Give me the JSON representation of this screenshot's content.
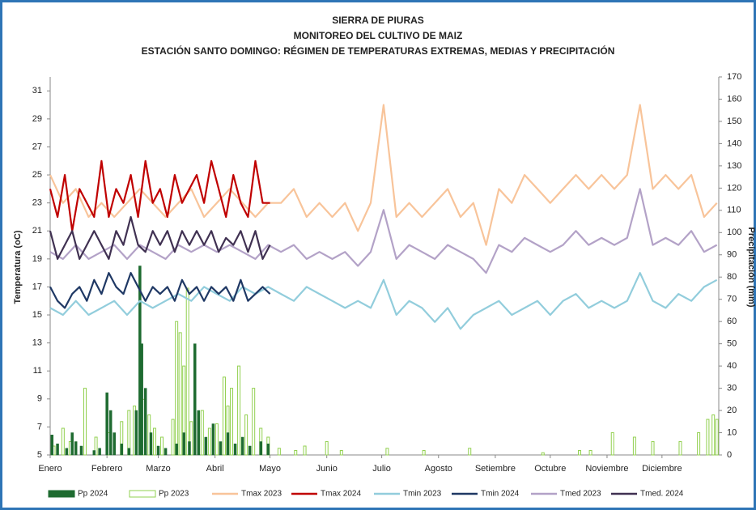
{
  "chart_data": {
    "type": "combo",
    "title_lines": [
      "SIERRA DE PIURAS",
      "MONITOREO DEL CULTIVO DE MAIZ",
      "ESTACIÓN SANTO DOMINGO: RÉGIMEN DE TEMPERATURAS EXTREMAS, MEDIAS Y PRECIPITACIÓN"
    ],
    "y_label": "Temperatura (oC)",
    "y2_label": "Precipitación (mm)",
    "xlim": [
      1,
      366
    ],
    "xticks": [
      {
        "value": 1,
        "label": "Enero"
      },
      {
        "value": 32,
        "label": "Febrero"
      },
      {
        "value": 60,
        "label": "Marzo"
      },
      {
        "value": 91,
        "label": "Abril"
      },
      {
        "value": 121,
        "label": "Mayo"
      },
      {
        "value": 152,
        "label": "Junio"
      },
      {
        "value": 182,
        "label": "Julio"
      },
      {
        "value": 213,
        "label": "Agosto"
      },
      {
        "value": 244,
        "label": "Setiembre"
      },
      {
        "value": 274,
        "label": "Octubre"
      },
      {
        "value": 305,
        "label": "Noviembre"
      },
      {
        "value": 335,
        "label": "Diciembre"
      }
    ],
    "ylim": [
      5,
      32
    ],
    "yticks": [
      5,
      7,
      9,
      11,
      13,
      15,
      17,
      19,
      21,
      23,
      25,
      27,
      29,
      31
    ],
    "y2lim": [
      0,
      170
    ],
    "y2ticks": [
      0,
      10,
      20,
      30,
      40,
      50,
      60,
      70,
      80,
      90,
      100,
      110,
      120,
      130,
      140,
      150,
      160,
      170
    ],
    "series": [
      {
        "name": "Pp 2024",
        "type": "bar",
        "axis": "y2",
        "color": "#1e6b30",
        "x": [
          2,
          5,
          10,
          13,
          15,
          18,
          25,
          28,
          32,
          34,
          36,
          40,
          44,
          48,
          50,
          51,
          53,
          56,
          60,
          64,
          70,
          74,
          77,
          80,
          82,
          86,
          90,
          94,
          98,
          102,
          106,
          110,
          116,
          120
        ],
        "values": [
          9,
          5,
          3,
          10,
          6,
          4,
          2,
          3,
          28,
          20,
          10,
          5,
          3,
          20,
          85,
          50,
          30,
          10,
          4,
          3,
          5,
          10,
          6,
          50,
          20,
          8,
          14,
          6,
          10,
          5,
          8,
          4,
          6,
          5
        ]
      },
      {
        "name": "Pp 2023",
        "type": "bar",
        "axis": "y2",
        "color": "#92d050",
        "x": [
          3,
          8,
          12,
          20,
          26,
          33,
          40,
          44,
          47,
          52,
          55,
          58,
          62,
          68,
          70,
          72,
          74,
          76,
          78,
          84,
          88,
          92,
          96,
          98,
          100,
          104,
          108,
          112,
          116,
          120,
          126,
          135,
          140,
          152,
          160,
          185,
          205,
          230,
          270,
          290,
          296,
          308,
          320,
          330,
          345,
          355,
          360,
          363,
          365
        ],
        "values": [
          4,
          12,
          6,
          30,
          8,
          10,
          15,
          20,
          22,
          25,
          18,
          12,
          8,
          16,
          60,
          55,
          40,
          75,
          15,
          20,
          12,
          14,
          35,
          22,
          30,
          40,
          18,
          30,
          12,
          8,
          3,
          2,
          4,
          6,
          2,
          3,
          2,
          3,
          1,
          2,
          2,
          10,
          8,
          6,
          6,
          10,
          16,
          18,
          16
        ]
      },
      {
        "name": "Tmax 2023",
        "type": "line",
        "color": "#f8c49a",
        "x": [
          1,
          8,
          15,
          22,
          29,
          36,
          43,
          50,
          57,
          64,
          71,
          78,
          85,
          92,
          99,
          106,
          113,
          120,
          127,
          134,
          141,
          148,
          155,
          162,
          169,
          176,
          183,
          190,
          197,
          204,
          211,
          218,
          225,
          232,
          239,
          246,
          253,
          260,
          267,
          274,
          281,
          288,
          295,
          302,
          309,
          316,
          323,
          330,
          337,
          344,
          351,
          358,
          365
        ],
        "values": [
          25,
          23,
          24,
          22,
          23,
          22,
          23,
          24,
          23,
          22,
          23,
          24,
          22,
          23,
          24,
          23,
          22,
          23,
          23,
          24,
          22,
          23,
          22,
          23,
          21,
          23,
          30,
          22,
          23,
          22,
          23,
          24,
          22,
          23,
          20,
          24,
          23,
          25,
          24,
          23,
          24,
          25,
          24,
          25,
          24,
          25,
          30,
          24,
          25,
          24,
          25,
          22,
          23
        ]
      },
      {
        "name": "Tmax 2024",
        "type": "line",
        "color": "#c00000",
        "x": [
          1,
          5,
          9,
          13,
          17,
          21,
          25,
          29,
          33,
          37,
          41,
          45,
          49,
          53,
          57,
          61,
          65,
          69,
          73,
          77,
          81,
          85,
          89,
          93,
          97,
          101,
          105,
          109,
          113,
          117,
          121
        ],
        "values": [
          24,
          22,
          25,
          21,
          24,
          23,
          22,
          26,
          22,
          24,
          23,
          25,
          22,
          26,
          23,
          24,
          22,
          25,
          23,
          24,
          25,
          23,
          26,
          24,
          22,
          25,
          23,
          22,
          26,
          23,
          23
        ]
      },
      {
        "name": "Tmin 2023",
        "type": "line",
        "color": "#92cddc",
        "x": [
          1,
          8,
          15,
          22,
          29,
          36,
          43,
          50,
          57,
          64,
          71,
          78,
          85,
          92,
          99,
          106,
          113,
          120,
          127,
          134,
          141,
          148,
          155,
          162,
          169,
          176,
          183,
          190,
          197,
          204,
          211,
          218,
          225,
          232,
          239,
          246,
          253,
          260,
          267,
          274,
          281,
          288,
          295,
          302,
          309,
          316,
          323,
          330,
          337,
          344,
          351,
          358,
          365
        ],
        "values": [
          15.5,
          15,
          16,
          15,
          15.5,
          16,
          15,
          16,
          15.5,
          16,
          16.5,
          16,
          17,
          16.5,
          16,
          17,
          16.5,
          17,
          16.5,
          16,
          17,
          16.5,
          16,
          15.5,
          16,
          15.5,
          17.5,
          15,
          16,
          15.5,
          14.5,
          15.5,
          14,
          15,
          15.5,
          16,
          15,
          15.5,
          16,
          15,
          16,
          16.5,
          15.5,
          16,
          15.5,
          16,
          18,
          16,
          15.5,
          16.5,
          16,
          17,
          17.5
        ]
      },
      {
        "name": "Tmin 2024",
        "type": "line",
        "color": "#1f3864",
        "x": [
          1,
          5,
          9,
          13,
          17,
          21,
          25,
          29,
          33,
          37,
          41,
          45,
          49,
          53,
          57,
          61,
          65,
          69,
          73,
          77,
          81,
          85,
          89,
          93,
          97,
          101,
          105,
          109,
          113,
          117,
          121
        ],
        "values": [
          17,
          16,
          15.5,
          16.5,
          17,
          16,
          17.5,
          16.5,
          18,
          17,
          16.5,
          18,
          17,
          16,
          17,
          16.5,
          17,
          16,
          17.5,
          16.5,
          17,
          16,
          17,
          16.5,
          17,
          16,
          17.5,
          16,
          16.5,
          17,
          16.5
        ]
      },
      {
        "name": "Tmed 2023",
        "type": "line",
        "color": "#b3a2c7",
        "x": [
          1,
          8,
          15,
          22,
          29,
          36,
          43,
          50,
          57,
          64,
          71,
          78,
          85,
          92,
          99,
          106,
          113,
          120,
          127,
          134,
          141,
          148,
          155,
          162,
          169,
          176,
          183,
          190,
          197,
          204,
          211,
          218,
          225,
          232,
          239,
          246,
          253,
          260,
          267,
          274,
          281,
          288,
          295,
          302,
          309,
          316,
          323,
          330,
          337,
          344,
          351,
          358,
          365
        ],
        "values": [
          19.5,
          19,
          20,
          19,
          19.5,
          20,
          19,
          20,
          19.5,
          19,
          20,
          19.5,
          20,
          19.5,
          20,
          19.5,
          19,
          20,
          19.5,
          20,
          19,
          19.5,
          19,
          19.5,
          18.5,
          19.5,
          22.5,
          19,
          20,
          19.5,
          19,
          20,
          19.5,
          19,
          18,
          20,
          19.5,
          20.5,
          20,
          19.5,
          20,
          21,
          20,
          20.5,
          20,
          20.5,
          24,
          20,
          20.5,
          20,
          21,
          19.5,
          20
        ]
      },
      {
        "name": "Tmed. 2024",
        "type": "line",
        "color": "#403152",
        "x": [
          1,
          5,
          9,
          13,
          17,
          21,
          25,
          29,
          33,
          37,
          41,
          45,
          49,
          53,
          57,
          61,
          65,
          69,
          73,
          77,
          81,
          85,
          89,
          93,
          97,
          101,
          105,
          109,
          113,
          117,
          121
        ],
        "values": [
          21,
          19,
          20,
          21,
          19,
          20,
          21,
          20,
          19,
          21,
          20,
          22,
          20,
          19.5,
          21,
          20,
          21,
          19.5,
          21,
          20,
          21,
          20,
          21,
          19.5,
          20.5,
          20,
          21,
          19.5,
          21,
          19,
          20
        ]
      }
    ]
  }
}
